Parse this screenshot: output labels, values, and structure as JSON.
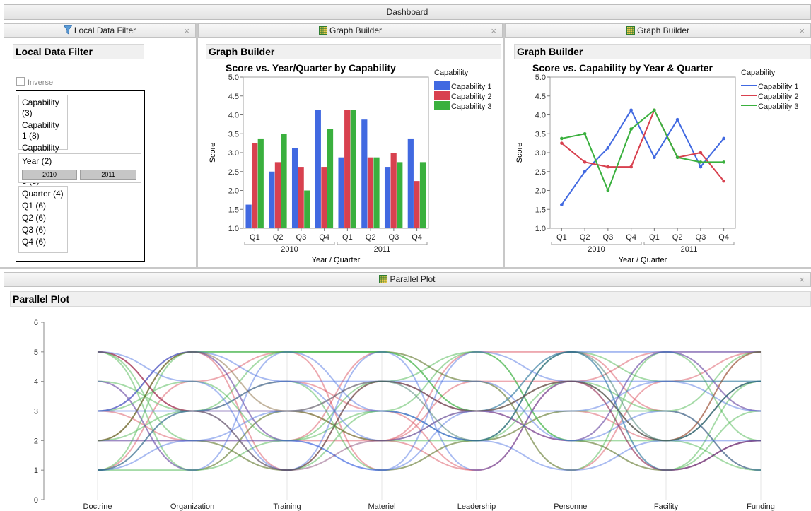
{
  "dashboard": {
    "title": "Dashboard"
  },
  "panels": {
    "filter": {
      "tab": "Local Data Filter",
      "heading": "Local Data Filter",
      "inverse_label": "Inverse",
      "close": "×"
    },
    "graph1": {
      "tab": "Graph Builder",
      "heading": "Graph Builder",
      "close": "×"
    },
    "graph2": {
      "tab": "Graph Builder",
      "heading": "Graph Builder",
      "close": "×"
    },
    "parallel": {
      "tab": "Parallel Plot",
      "heading": "Parallel Plot",
      "close": "×"
    }
  },
  "filter": {
    "capability": {
      "header": "Capability (3)",
      "items": [
        "Capability 1 (8)",
        "Capability 2 (8)",
        "Capability 3 (8)"
      ]
    },
    "year": {
      "header": "Year (2)",
      "items": [
        "2010",
        "2011"
      ]
    },
    "quarter": {
      "header": "Quarter (4)",
      "items": [
        "Q1 (6)",
        "Q2 (6)",
        "Q3 (6)",
        "Q4 (6)"
      ]
    }
  },
  "colors": {
    "capability_1": "#4169e1",
    "capability_2": "#d8414f",
    "capability_3": "#3ab03e"
  },
  "icons": {
    "filter_tab": "funnel-icon",
    "graph_tab": "graph-builder-icon",
    "parallel_tab": "graph-builder-icon"
  },
  "chart_data": [
    {
      "type": "bar",
      "title": "Score vs. Year/Quarter by Capability",
      "xlabel": "Year / Quarter",
      "ylabel": "Score",
      "ylim": [
        1.0,
        5.0
      ],
      "yticks": [
        "1.0",
        "1.5",
        "2.0",
        "2.5",
        "3.0",
        "3.5",
        "4.0",
        "4.5",
        "5.0"
      ],
      "categories": [
        "Q1",
        "Q2",
        "Q3",
        "Q4",
        "Q1",
        "Q2",
        "Q3",
        "Q4"
      ],
      "groups": [
        "2010",
        "2011"
      ],
      "legend_title": "Capability",
      "legend_position": "right",
      "series": [
        {
          "name": "Capability 1",
          "color": "#4169e1",
          "values": [
            1.625,
            2.5,
            3.125,
            4.125,
            2.875,
            3.875,
            2.625,
            3.375
          ]
        },
        {
          "name": "Capability 2",
          "color": "#d8414f",
          "values": [
            3.25,
            2.75,
            2.625,
            2.625,
            4.125,
            2.875,
            3.0,
            2.25
          ]
        },
        {
          "name": "Capability 3",
          "color": "#3ab03e",
          "values": [
            3.375,
            3.5,
            2.0,
            3.625,
            4.125,
            2.875,
            2.75,
            2.75
          ]
        }
      ]
    },
    {
      "type": "line",
      "title": "Score vs. Capability by Year & Quarter",
      "xlabel": "Year / Quarter",
      "ylabel": "Score",
      "ylim": [
        1.0,
        5.0
      ],
      "yticks": [
        "1.0",
        "1.5",
        "2.0",
        "2.5",
        "3.0",
        "3.5",
        "4.0",
        "4.5",
        "5.0"
      ],
      "categories": [
        "Q1",
        "Q2",
        "Q3",
        "Q4",
        "Q1",
        "Q2",
        "Q3",
        "Q4"
      ],
      "groups": [
        "2010",
        "2011"
      ],
      "legend_title": "Capability",
      "legend_position": "right",
      "series": [
        {
          "name": "Capability 1",
          "color": "#4169e1",
          "values": [
            1.625,
            2.5,
            3.125,
            4.125,
            2.875,
            3.875,
            2.625,
            3.375
          ]
        },
        {
          "name": "Capability 2",
          "color": "#d8414f",
          "values": [
            3.25,
            2.75,
            2.625,
            2.625,
            4.125,
            2.875,
            3.0,
            2.25
          ]
        },
        {
          "name": "Capability 3",
          "color": "#3ab03e",
          "values": [
            3.375,
            3.5,
            2.0,
            3.625,
            4.125,
            2.875,
            2.75,
            2.75
          ]
        }
      ]
    },
    {
      "type": "line",
      "title": "",
      "ylim": [
        0,
        6
      ],
      "yticks": [
        "0",
        "1",
        "2",
        "3",
        "4",
        "5",
        "6"
      ],
      "axes": [
        "Doctrine",
        "Organization",
        "Training",
        "Materiel",
        "Leadership",
        "Personnel",
        "Facility",
        "Funding"
      ],
      "series": [
        {
          "color": "#d8414f",
          "values": [
            5,
            3,
            3,
            2,
            1,
            4,
            5,
            5
          ]
        },
        {
          "color": "#d8414f",
          "values": [
            3,
            5,
            1,
            4,
            3,
            2,
            1,
            2
          ]
        },
        {
          "color": "#d8414f",
          "values": [
            2,
            2,
            2,
            5,
            4,
            1,
            4,
            5
          ]
        },
        {
          "color": "#d8414f",
          "values": [
            1,
            4,
            5,
            1,
            2,
            3,
            2,
            4
          ]
        },
        {
          "color": "#d8414f",
          "values": [
            4,
            1,
            3,
            2,
            5,
            5,
            3,
            1
          ]
        },
        {
          "color": "#d8414f",
          "values": [
            5,
            3,
            4,
            3,
            1,
            4,
            1,
            2
          ]
        },
        {
          "color": "#d8414f",
          "values": [
            3,
            2,
            1,
            4,
            3,
            2,
            5,
            3
          ]
        },
        {
          "color": "#d8414f",
          "values": [
            2,
            5,
            2,
            2,
            4,
            4,
            2,
            5
          ]
        },
        {
          "color": "#3ab03e",
          "values": [
            1,
            5,
            5,
            5,
            3,
            4,
            2,
            4
          ]
        },
        {
          "color": "#3ab03e",
          "values": [
            5,
            2,
            1,
            3,
            2,
            5,
            4,
            4
          ]
        },
        {
          "color": "#3ab03e",
          "values": [
            2,
            5,
            5,
            5,
            4,
            1,
            5,
            2
          ]
        },
        {
          "color": "#3ab03e",
          "values": [
            1,
            1,
            3,
            2,
            2,
            3,
            3,
            1
          ]
        },
        {
          "color": "#3ab03e",
          "values": [
            3,
            4,
            2,
            4,
            5,
            2,
            1,
            3
          ]
        },
        {
          "color": "#3ab03e",
          "values": [
            4,
            3,
            4,
            1,
            2,
            4,
            3,
            5
          ]
        },
        {
          "color": "#3ab03e",
          "values": [
            2,
            3,
            5,
            5,
            3,
            5,
            1,
            4
          ]
        },
        {
          "color": "#3ab03e",
          "values": [
            5,
            1,
            2,
            3,
            5,
            2,
            2,
            1
          ]
        },
        {
          "color": "#4169e1",
          "values": [
            3,
            3,
            3,
            4,
            3,
            3,
            4,
            4
          ]
        },
        {
          "color": "#4169e1",
          "values": [
            4,
            1,
            5,
            3,
            2,
            5,
            5,
            3
          ]
        },
        {
          "color": "#4169e1",
          "values": [
            3,
            5,
            2,
            1,
            5,
            4,
            2,
            2
          ]
        },
        {
          "color": "#4169e1",
          "values": [
            1,
            3,
            4,
            2,
            3,
            2,
            3,
            1
          ]
        },
        {
          "color": "#4169e1",
          "values": [
            5,
            4,
            1,
            5,
            1,
            4,
            4,
            3
          ]
        },
        {
          "color": "#4169e1",
          "values": [
            2,
            2,
            3,
            3,
            2,
            1,
            2,
            4
          ]
        },
        {
          "color": "#4169e1",
          "values": [
            3,
            5,
            4,
            4,
            4,
            2,
            5,
            5
          ]
        },
        {
          "color": "#4169e1",
          "values": [
            1,
            2,
            2,
            1,
            3,
            5,
            1,
            2
          ]
        },
        {
          "color": "#7a5a2a",
          "values": [
            2,
            5,
            3,
            4,
            3,
            4,
            2,
            5
          ]
        },
        {
          "color": "#2a6a5a",
          "values": [
            1,
            3,
            1,
            4,
            2,
            5,
            2,
            4
          ]
        },
        {
          "color": "#7a3a6a",
          "values": [
            5,
            3,
            1,
            2,
            3,
            4,
            1,
            2
          ]
        }
      ]
    }
  ]
}
